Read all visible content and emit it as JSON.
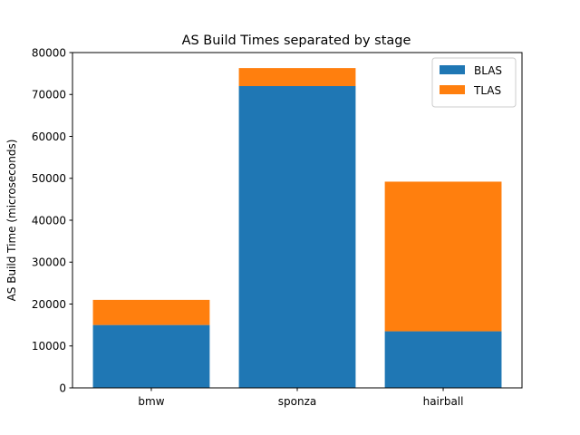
{
  "chart_data": {
    "type": "bar",
    "stacked": true,
    "title": "AS Build Times separated by stage",
    "xlabel": "",
    "ylabel": "AS Build Time (microseconds)",
    "categories": [
      "bmw",
      "sponza",
      "hairball"
    ],
    "series": [
      {
        "name": "BLAS",
        "values": [
          15000,
          72000,
          13500
        ],
        "color": "#1f77b4"
      },
      {
        "name": "TLAS",
        "values": [
          6000,
          4300,
          35700
        ],
        "color": "#ff7f0e"
      }
    ],
    "ylim": [
      0,
      80000
    ],
    "yticks": [
      0,
      10000,
      20000,
      30000,
      40000,
      50000,
      60000,
      70000,
      80000
    ],
    "grid": false,
    "legend_position": "top-right"
  }
}
